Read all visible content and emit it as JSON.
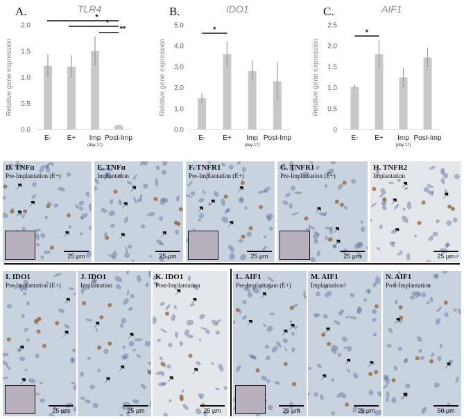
{
  "chart_data": [
    {
      "type": "bar",
      "panel_letter": "A.",
      "title": "TLR4",
      "ylabel": "Relative gene expression",
      "categories": [
        "E-",
        "E+",
        "Imp",
        "Post-Imp"
      ],
      "category_sublabels": [
        "",
        "",
        "(day 17)",
        ""
      ],
      "values": [
        1.22,
        1.2,
        1.5,
        0.08
      ],
      "errors": [
        0.22,
        0.22,
        0.28,
        0.01
      ],
      "ylim": [
        0,
        2.0
      ],
      "yticks": [
        "0.0",
        "0.5",
        "1.0",
        "1.5",
        "2.0"
      ],
      "significance": [
        "*",
        "*",
        "**"
      ],
      "bar_color": "#c8c8c8"
    },
    {
      "type": "bar",
      "panel_letter": "B.",
      "title": "IDO1",
      "ylabel": "Relative gene expression",
      "categories": [
        "E-",
        "E+",
        "Imp",
        "Post-Imp"
      ],
      "category_sublabels": [
        "",
        "",
        "(day 17)",
        ""
      ],
      "values": [
        1.5,
        3.6,
        2.8,
        2.3
      ],
      "errors": [
        0.25,
        0.6,
        0.5,
        0.9
      ],
      "ylim": [
        0,
        5.0
      ],
      "yticks": [
        "0.0",
        "1.0",
        "2.0",
        "3.0",
        "4.0",
        "5.0"
      ],
      "significance": [
        "*"
      ],
      "bar_color": "#c8c8c8"
    },
    {
      "type": "bar",
      "panel_letter": "C.",
      "title": "AIF1",
      "ylabel": "Relative gene expression",
      "categories": [
        "E-",
        "E+",
        "Imp",
        "Post-Imp"
      ],
      "category_sublabels": [
        "",
        "",
        "(day 17)",
        ""
      ],
      "values": [
        1.02,
        1.8,
        1.25,
        1.72
      ],
      "errors": [
        0.06,
        0.33,
        0.23,
        0.23
      ],
      "ylim": [
        0,
        2.5
      ],
      "yticks": [
        "0",
        "0.5",
        "1.0",
        "1.5",
        "2.0",
        "2.5"
      ],
      "significance": [
        "*"
      ],
      "bar_color": "#c8c8c8"
    }
  ],
  "panels": [
    {
      "title": "D. TNFα",
      "subtitle": "Pre-Implantation (E+)",
      "scale": "25 µm",
      "inset": true
    },
    {
      "title": "E. TNFα",
      "subtitle": "Implantation",
      "scale": "25 µm",
      "inset": false
    },
    {
      "title": "F. TNFR1",
      "subtitle": "Pre-Implantation (E+)",
      "scale": "25 µm",
      "inset": true
    },
    {
      "title": "G. TNFR1",
      "subtitle": "Pre-Implantation (E+)",
      "scale": "25 µm",
      "inset": true
    },
    {
      "title": "H. TNFR2",
      "subtitle": "Implantation",
      "scale": "25 µm",
      "inset": false
    },
    {
      "title": "I. IDO1",
      "subtitle": "Pre-Implantation (E+)",
      "scale": "25 µm",
      "inset": true
    },
    {
      "title": "J. IDO1",
      "subtitle": "Implantation",
      "scale": "25 µm",
      "inset": false
    },
    {
      "title": "K. IDO1",
      "subtitle": "Post-Implantation",
      "scale": "25 µm",
      "inset": false
    },
    {
      "title": "L. AIF1",
      "subtitle": "Pre-Implantation (E+)",
      "scale": "25 µm",
      "inset": true
    },
    {
      "title": "M. AIF1",
      "subtitle": "Implantation",
      "scale": "25 µm",
      "inset": false
    },
    {
      "title": "N. AIF1",
      "subtitle": "Post-Implantation",
      "scale": "50 µm",
      "inset": false
    }
  ],
  "colors": {
    "tissue": "#c9d3e0",
    "tissue_light": "#e3e6ea",
    "stain": "#8a5a2b",
    "nucleus": "#5f6f9a"
  }
}
